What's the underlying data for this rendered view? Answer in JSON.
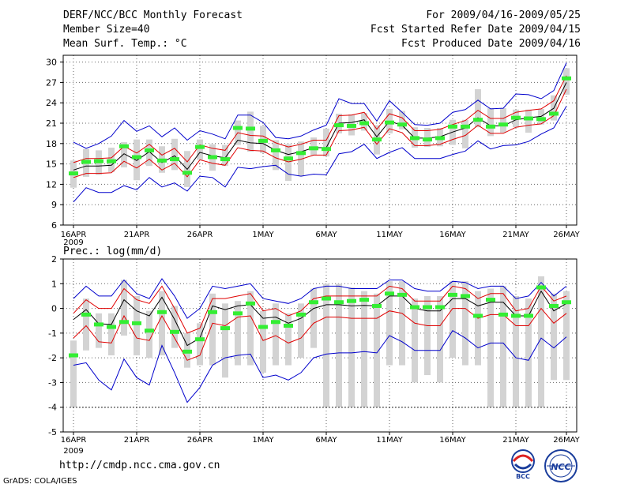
{
  "header": {
    "title": "DERF/NCC/BCC Monthly Forecast",
    "member_size": "Member Size=40",
    "variable": "Mean Surf. Temp.: °C",
    "period": "For 2009/04/16-2009/05/25",
    "fcst_started": "Fcst Started Refer Date 2009/04/15",
    "fcst_produced": "Fcst Produced Date 2009/04/16"
  },
  "footer": {
    "url": "http://cmdp.ncc.cma.gov.cn",
    "grads": "GrADS: COLA/IGES",
    "logo_bcc": "BCC",
    "logo_ncc": "NCC"
  },
  "colors": {
    "ens_mean": "#000000",
    "inner_band": "#e00000",
    "outer_band": "#0000cc",
    "box": "#d3d3d3",
    "obs": "#33ee33",
    "grid": "#666666"
  },
  "chart_data": [
    {
      "type": "line",
      "title": "Mean Surf. Temp.: °C",
      "ylim": [
        6,
        31
      ],
      "yticks": [
        6,
        9,
        12,
        15,
        18,
        21,
        24,
        27,
        30
      ],
      "xticks": [
        0,
        5,
        10,
        15,
        20,
        25,
        30,
        35,
        39
      ],
      "xtick_labels": [
        "16APR",
        "21APR",
        "26APR",
        "1MAY",
        "6MAY",
        "11MAY",
        "16MAY",
        "21MAY",
        "26MAY"
      ],
      "xyear": "2009",
      "series": [
        {
          "name": "ens_mean",
          "values": [
            14.1,
            14.7,
            14.7,
            14.8,
            16.5,
            15.5,
            16.8,
            15.2,
            16.2,
            14.2,
            16.7,
            16.2,
            15.9,
            18.5,
            18.1,
            18.0,
            17.0,
            16.4,
            16.8,
            17.4,
            17.4,
            21.0,
            21.1,
            21.5,
            19.0,
            21.3,
            20.7,
            18.8,
            18.8,
            19.0,
            19.7,
            20.3,
            21.8,
            20.6,
            20.6,
            21.5,
            21.8,
            22.0,
            23.2,
            27.0
          ]
        },
        {
          "name": "inner_upper",
          "values": [
            15.2,
            15.8,
            15.8,
            15.9,
            17.6,
            16.6,
            17.9,
            16.3,
            17.3,
            15.3,
            17.8,
            17.3,
            17.0,
            19.6,
            19.2,
            19.1,
            18.1,
            17.5,
            17.9,
            18.5,
            18.5,
            22.1,
            22.2,
            22.6,
            20.1,
            22.4,
            21.8,
            19.9,
            19.9,
            20.1,
            20.8,
            21.4,
            22.9,
            21.7,
            21.7,
            22.6,
            22.9,
            23.1,
            24.3,
            28.0
          ]
        },
        {
          "name": "inner_lower",
          "values": [
            13.0,
            13.6,
            13.6,
            13.7,
            15.4,
            14.4,
            15.7,
            14.1,
            15.1,
            13.1,
            15.6,
            15.1,
            14.8,
            17.4,
            17.0,
            16.9,
            15.9,
            15.3,
            15.7,
            16.3,
            16.3,
            19.9,
            20.0,
            20.4,
            17.9,
            20.2,
            19.6,
            17.7,
            17.7,
            17.9,
            18.6,
            19.2,
            20.7,
            19.5,
            19.5,
            20.4,
            20.7,
            20.9,
            22.1,
            26.0
          ]
        },
        {
          "name": "outer_upper",
          "values": [
            18.2,
            17.3,
            18.0,
            19.1,
            21.4,
            19.8,
            20.6,
            19.0,
            20.3,
            18.5,
            19.9,
            19.4,
            18.7,
            22.2,
            22.2,
            21.1,
            18.9,
            18.7,
            19.1,
            20.0,
            20.7,
            24.6,
            23.9,
            23.9,
            21.3,
            24.3,
            22.6,
            20.8,
            20.7,
            21.0,
            22.6,
            23.0,
            24.4,
            23.1,
            23.2,
            25.3,
            25.2,
            24.6,
            25.8,
            29.9
          ]
        },
        {
          "name": "outer_lower",
          "values": [
            9.4,
            11.5,
            10.8,
            10.8,
            11.8,
            11.2,
            13.0,
            11.6,
            12.2,
            11.0,
            13.2,
            13.0,
            11.6,
            14.5,
            14.3,
            14.6,
            14.8,
            13.5,
            13.2,
            13.5,
            13.4,
            16.5,
            16.8,
            17.9,
            15.8,
            16.7,
            17.4,
            15.8,
            15.8,
            15.8,
            16.4,
            16.9,
            18.4,
            17.2,
            17.7,
            17.8,
            18.3,
            19.4,
            20.3,
            23.5
          ]
        },
        {
          "name": "box_high",
          "values": [
            15.5,
            17.2,
            17.0,
            17.4,
            18.2,
            18.6,
            18.6,
            17.6,
            18.7,
            16.9,
            18.6,
            17.9,
            17.8,
            21.4,
            22.7,
            20.6,
            18.5,
            17.9,
            18.3,
            18.9,
            20.2,
            22.4,
            22.3,
            22.5,
            20.7,
            23.1,
            22.8,
            20.4,
            20.3,
            20.3,
            21.5,
            21.5,
            26.0,
            23.2,
            23.2,
            23.0,
            23.0,
            23.1,
            25.1,
            29.1
          ]
        },
        {
          "name": "box_low",
          "values": [
            11.5,
            13.1,
            13.4,
            13.8,
            14.5,
            12.6,
            14.7,
            13.7,
            14.1,
            11.6,
            15.6,
            14.0,
            14.7,
            17.8,
            16.8,
            16.6,
            14.1,
            12.5,
            13.2,
            16.3,
            16.1,
            19.5,
            19.2,
            19.9,
            16.4,
            19.5,
            20.1,
            17.4,
            17.5,
            17.6,
            17.8,
            17.3,
            20.4,
            19.1,
            19.6,
            20.4,
            19.6,
            20.8,
            21.4,
            25.2
          ]
        },
        {
          "name": "observed",
          "values": [
            13.6,
            15.3,
            15.4,
            15.4,
            17.6,
            16.0,
            17.0,
            15.5,
            15.7,
            13.7,
            17.5,
            16.0,
            15.7,
            20.3,
            20.2,
            18.4,
            17.0,
            15.8,
            16.6,
            17.3,
            17.2,
            20.7,
            20.6,
            21.0,
            18.6,
            21.1,
            20.8,
            18.8,
            18.6,
            18.8,
            20.5,
            20.5,
            21.5,
            20.5,
            20.8,
            21.8,
            21.7,
            21.6,
            22.4,
            27.6
          ]
        }
      ]
    },
    {
      "type": "line",
      "title": "Prec.: log(mm/d)",
      "ylim": [
        -5,
        2
      ],
      "yticks": [
        -5,
        -4,
        -3,
        -2,
        -1,
        0,
        1,
        2
      ],
      "xticks": [
        0,
        5,
        10,
        15,
        20,
        25,
        30,
        35,
        39
      ],
      "xtick_labels": [
        "16APR",
        "21APR",
        "26APR",
        "1MAY",
        "6MAY",
        "11MAY",
        "16MAY",
        "21MAY",
        "26MAY"
      ],
      "xyear": "2009",
      "series": [
        {
          "name": "ens_mean",
          "values": [
            -0.45,
            -0.05,
            -0.62,
            -0.65,
            0.35,
            -0.1,
            -0.3,
            0.45,
            -0.45,
            -1.5,
            -1.2,
            0.1,
            -0.05,
            0.1,
            0.15,
            -0.4,
            -0.35,
            -0.6,
            -0.4,
            0.0,
            0.15,
            0.15,
            0.1,
            0.12,
            0.1,
            0.5,
            0.5,
            0.0,
            -0.1,
            -0.1,
            0.4,
            0.4,
            0.1,
            0.25,
            0.25,
            -0.3,
            -0.3,
            0.7,
            -0.1,
            0.2
          ]
        },
        {
          "name": "inner_upper",
          "values": [
            -0.2,
            0.35,
            0.0,
            0.0,
            0.8,
            0.35,
            0.2,
            0.9,
            0.0,
            -1.0,
            -0.8,
            0.4,
            0.4,
            0.5,
            0.6,
            -0.1,
            0.0,
            -0.3,
            -0.1,
            0.4,
            0.5,
            0.5,
            0.5,
            0.5,
            0.5,
            0.9,
            0.8,
            0.3,
            0.3,
            0.3,
            0.9,
            0.8,
            0.4,
            0.6,
            0.6,
            -0.1,
            0.0,
            0.9,
            0.3,
            0.5
          ]
        },
        {
          "name": "inner_lower",
          "values": [
            -1.2,
            -0.7,
            -1.35,
            -1.4,
            -0.3,
            -1.2,
            -1.3,
            -0.3,
            -1.2,
            -2.1,
            -1.9,
            -0.6,
            -0.7,
            -0.35,
            -0.3,
            -1.3,
            -1.1,
            -1.4,
            -1.2,
            -0.6,
            -0.35,
            -0.35,
            -0.4,
            -0.4,
            -0.4,
            -0.1,
            -0.2,
            -0.6,
            -0.7,
            -0.7,
            0.0,
            0.0,
            -0.4,
            -0.25,
            -0.25,
            -0.7,
            -0.7,
            0.0,
            -0.6,
            -0.2
          ]
        },
        {
          "name": "outer_upper",
          "values": [
            0.4,
            0.9,
            0.5,
            0.5,
            1.15,
            0.6,
            0.4,
            1.2,
            0.5,
            -0.4,
            0.0,
            0.9,
            0.8,
            0.9,
            1.0,
            0.4,
            0.3,
            0.2,
            0.4,
            0.8,
            0.9,
            0.9,
            0.8,
            0.8,
            0.8,
            1.15,
            1.15,
            0.8,
            0.7,
            0.7,
            1.1,
            1.05,
            0.8,
            0.9,
            0.9,
            0.4,
            0.5,
            1.05,
            0.5,
            0.9
          ]
        },
        {
          "name": "outer_lower",
          "values": [
            -2.3,
            -2.2,
            -2.9,
            -3.3,
            -2.05,
            -2.8,
            -3.1,
            -1.5,
            -2.6,
            -3.8,
            -3.2,
            -2.3,
            -2.0,
            -1.9,
            -1.85,
            -2.8,
            -2.7,
            -2.9,
            -2.6,
            -2.0,
            -1.85,
            -1.8,
            -1.8,
            -1.75,
            -1.8,
            -1.1,
            -1.35,
            -1.7,
            -1.7,
            -1.7,
            -0.9,
            -1.2,
            -1.6,
            -1.4,
            -1.4,
            -2.0,
            -2.1,
            -1.2,
            -1.6,
            -1.15
          ]
        },
        {
          "name": "box_high",
          "values": [
            -1.3,
            0.4,
            -0.2,
            -0.2,
            1.15,
            0.5,
            -0.1,
            0.7,
            0.1,
            -1.0,
            -0.6,
            0.6,
            0.2,
            0.3,
            0.7,
            -0.1,
            0.2,
            -0.2,
            0.2,
            0.8,
            1.0,
            1.0,
            0.85,
            0.7,
            0.6,
            1.1,
            1.1,
            0.4,
            0.5,
            0.5,
            1.1,
            1.1,
            0.7,
            0.8,
            0.9,
            0.5,
            0.4,
            1.3,
            0.6,
            0.7
          ]
        },
        {
          "name": "box_low",
          "values": [
            -4.0,
            -1.7,
            -1.6,
            -1.9,
            -1.1,
            -1.9,
            -2.0,
            -1.9,
            -1.6,
            -2.4,
            -2.3,
            -2.3,
            -2.8,
            -2.3,
            -2.3,
            -2.6,
            -2.3,
            -2.3,
            -2.0,
            -1.6,
            -4.0,
            -4.0,
            -4.0,
            -4.0,
            -4.0,
            -2.3,
            -2.3,
            -3.0,
            -2.7,
            -3.0,
            -2.0,
            -2.3,
            -2.3,
            -4.0,
            -4.0,
            -4.0,
            -4.0,
            -4.0,
            -2.9,
            -2.9
          ]
        },
        {
          "name": "observed",
          "values": [
            -1.9,
            -0.25,
            -0.65,
            -0.75,
            -0.55,
            -0.6,
            -0.9,
            -0.15,
            -0.95,
            -1.75,
            -1.25,
            -0.15,
            -0.8,
            -0.2,
            0.2,
            -0.75,
            -0.55,
            -0.7,
            -0.25,
            0.25,
            0.4,
            0.25,
            0.3,
            0.35,
            0.1,
            0.6,
            0.55,
            0.05,
            0.05,
            0.05,
            0.55,
            0.5,
            -0.3,
            0.35,
            -0.25,
            -0.3,
            -0.3,
            0.85,
            0.1,
            0.25
          ]
        }
      ]
    }
  ]
}
